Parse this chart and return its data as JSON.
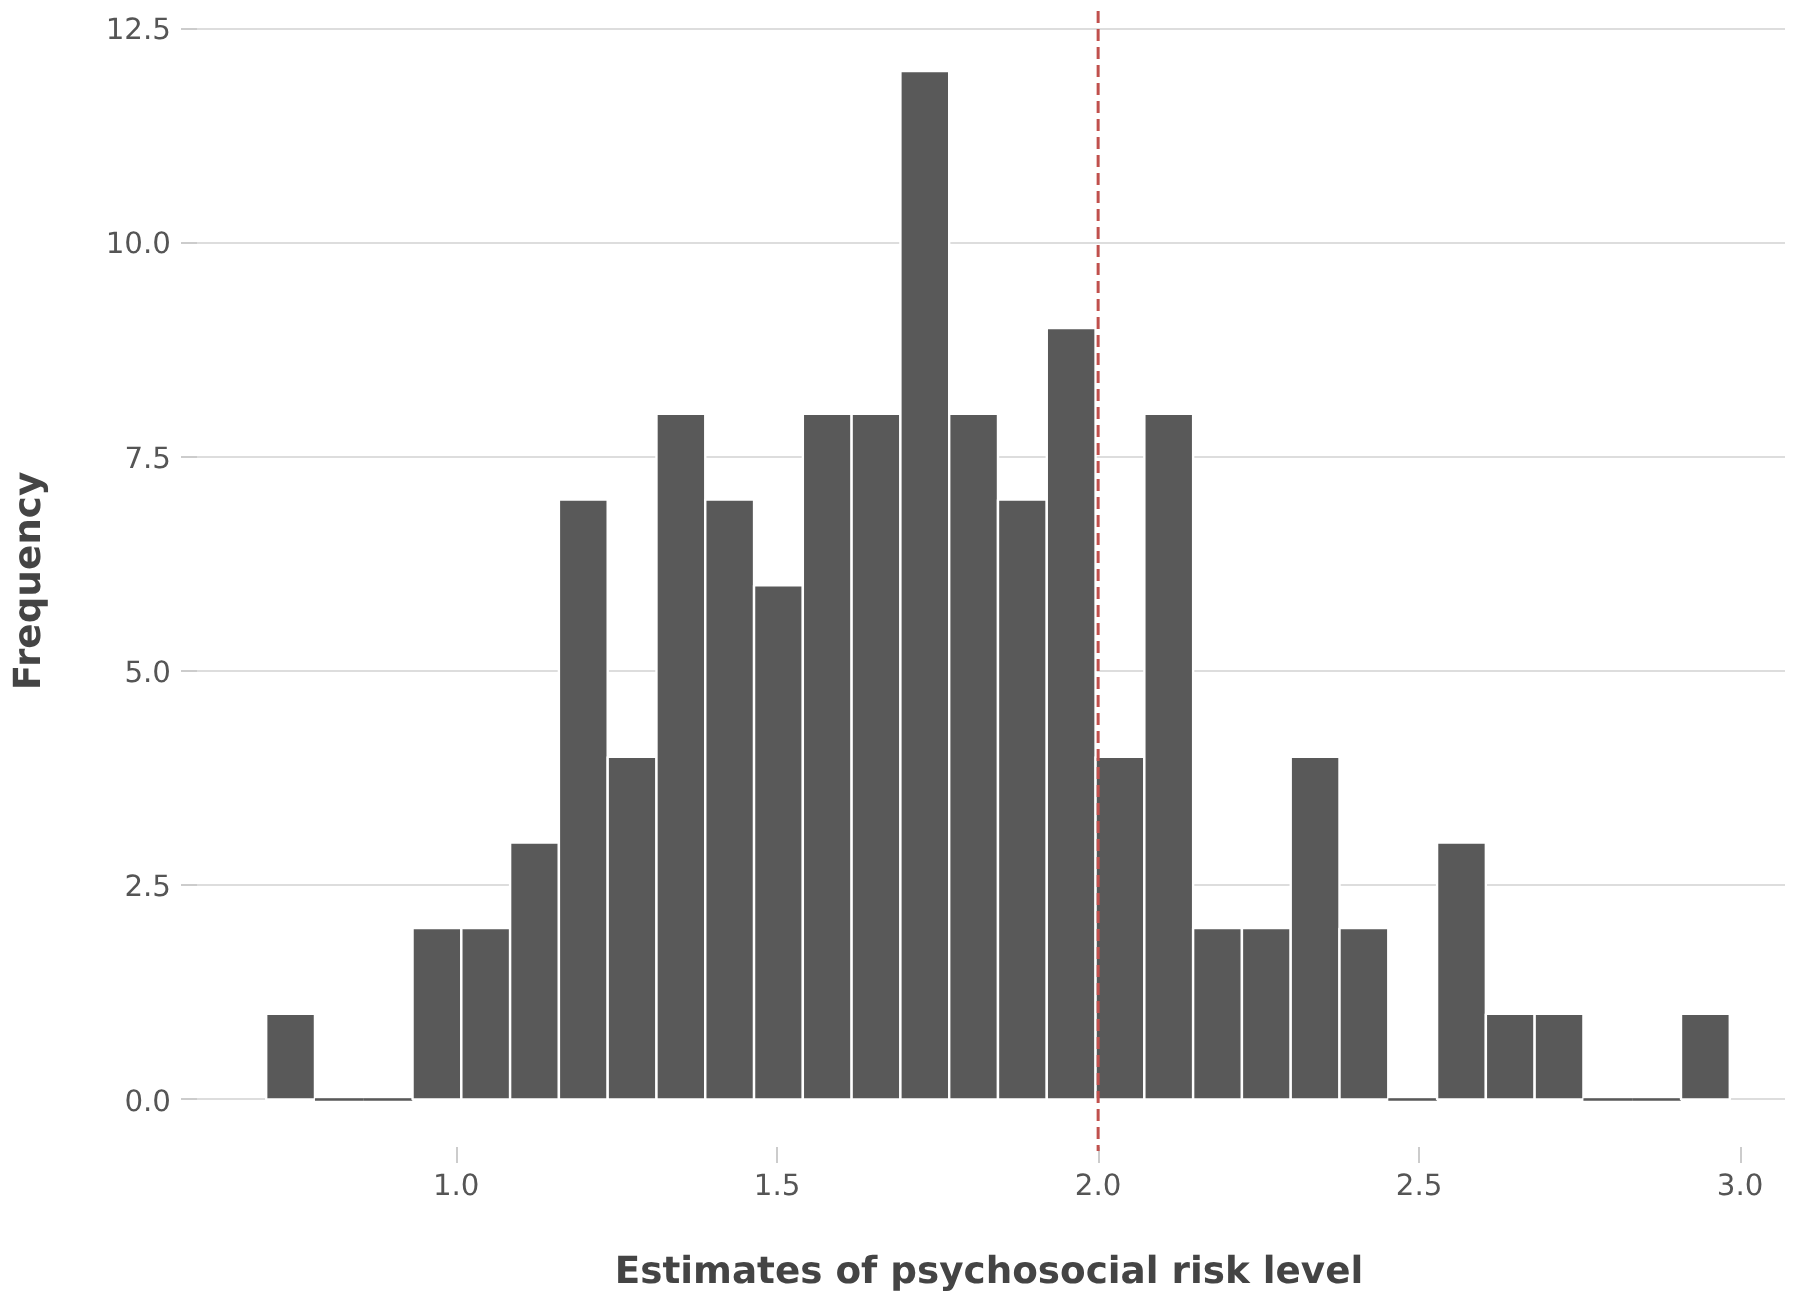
{
  "chart_data": {
    "type": "histogram",
    "xlabel": "Estimates of psychosocial risk level",
    "ylabel": "Frequency",
    "bins": [
      0.704,
      0.78,
      0.856,
      0.932,
      1.008,
      1.084,
      1.16,
      1.236,
      1.312,
      1.388,
      1.464,
      1.54,
      1.616,
      1.692,
      1.768,
      1.844,
      1.92,
      1.996,
      2.072,
      2.148,
      2.224,
      2.3,
      2.376,
      2.452,
      2.528,
      2.604,
      2.68,
      2.756,
      2.832,
      2.908,
      2.984
    ],
    "values": [
      1,
      0,
      0,
      2,
      2,
      3,
      7,
      4,
      8,
      7,
      6,
      8,
      8,
      12,
      8,
      7,
      9,
      4,
      8,
      2,
      2,
      4,
      2,
      0,
      3,
      1,
      1,
      0,
      0,
      1
    ],
    "color": "#595959",
    "xlim": [
      0.59,
      3.07
    ],
    "ylim": [
      -0.6,
      12.7
    ],
    "xticks": [
      {
        "value": 1,
        "label": "1.0"
      },
      {
        "value": 1.5,
        "label": "1.5"
      },
      {
        "value": 2,
        "label": "2.0"
      },
      {
        "value": 2.5,
        "label": "2.5"
      },
      {
        "value": 3,
        "label": "3.0"
      }
    ],
    "yticks": [
      {
        "value": 0,
        "label": "0.0"
      },
      {
        "value": 2.5,
        "label": "2.5"
      },
      {
        "value": 5,
        "label": "5.0"
      },
      {
        "value": 7.5,
        "label": "7.5"
      },
      {
        "value": 10,
        "label": "10.0"
      },
      {
        "value": 12.5,
        "label": "12.5"
      }
    ],
    "grid": "y",
    "ref_lines": [
      {
        "axis": "x",
        "value": 2.0,
        "color": "#c0504d",
        "line_style": "dashed"
      }
    ]
  }
}
